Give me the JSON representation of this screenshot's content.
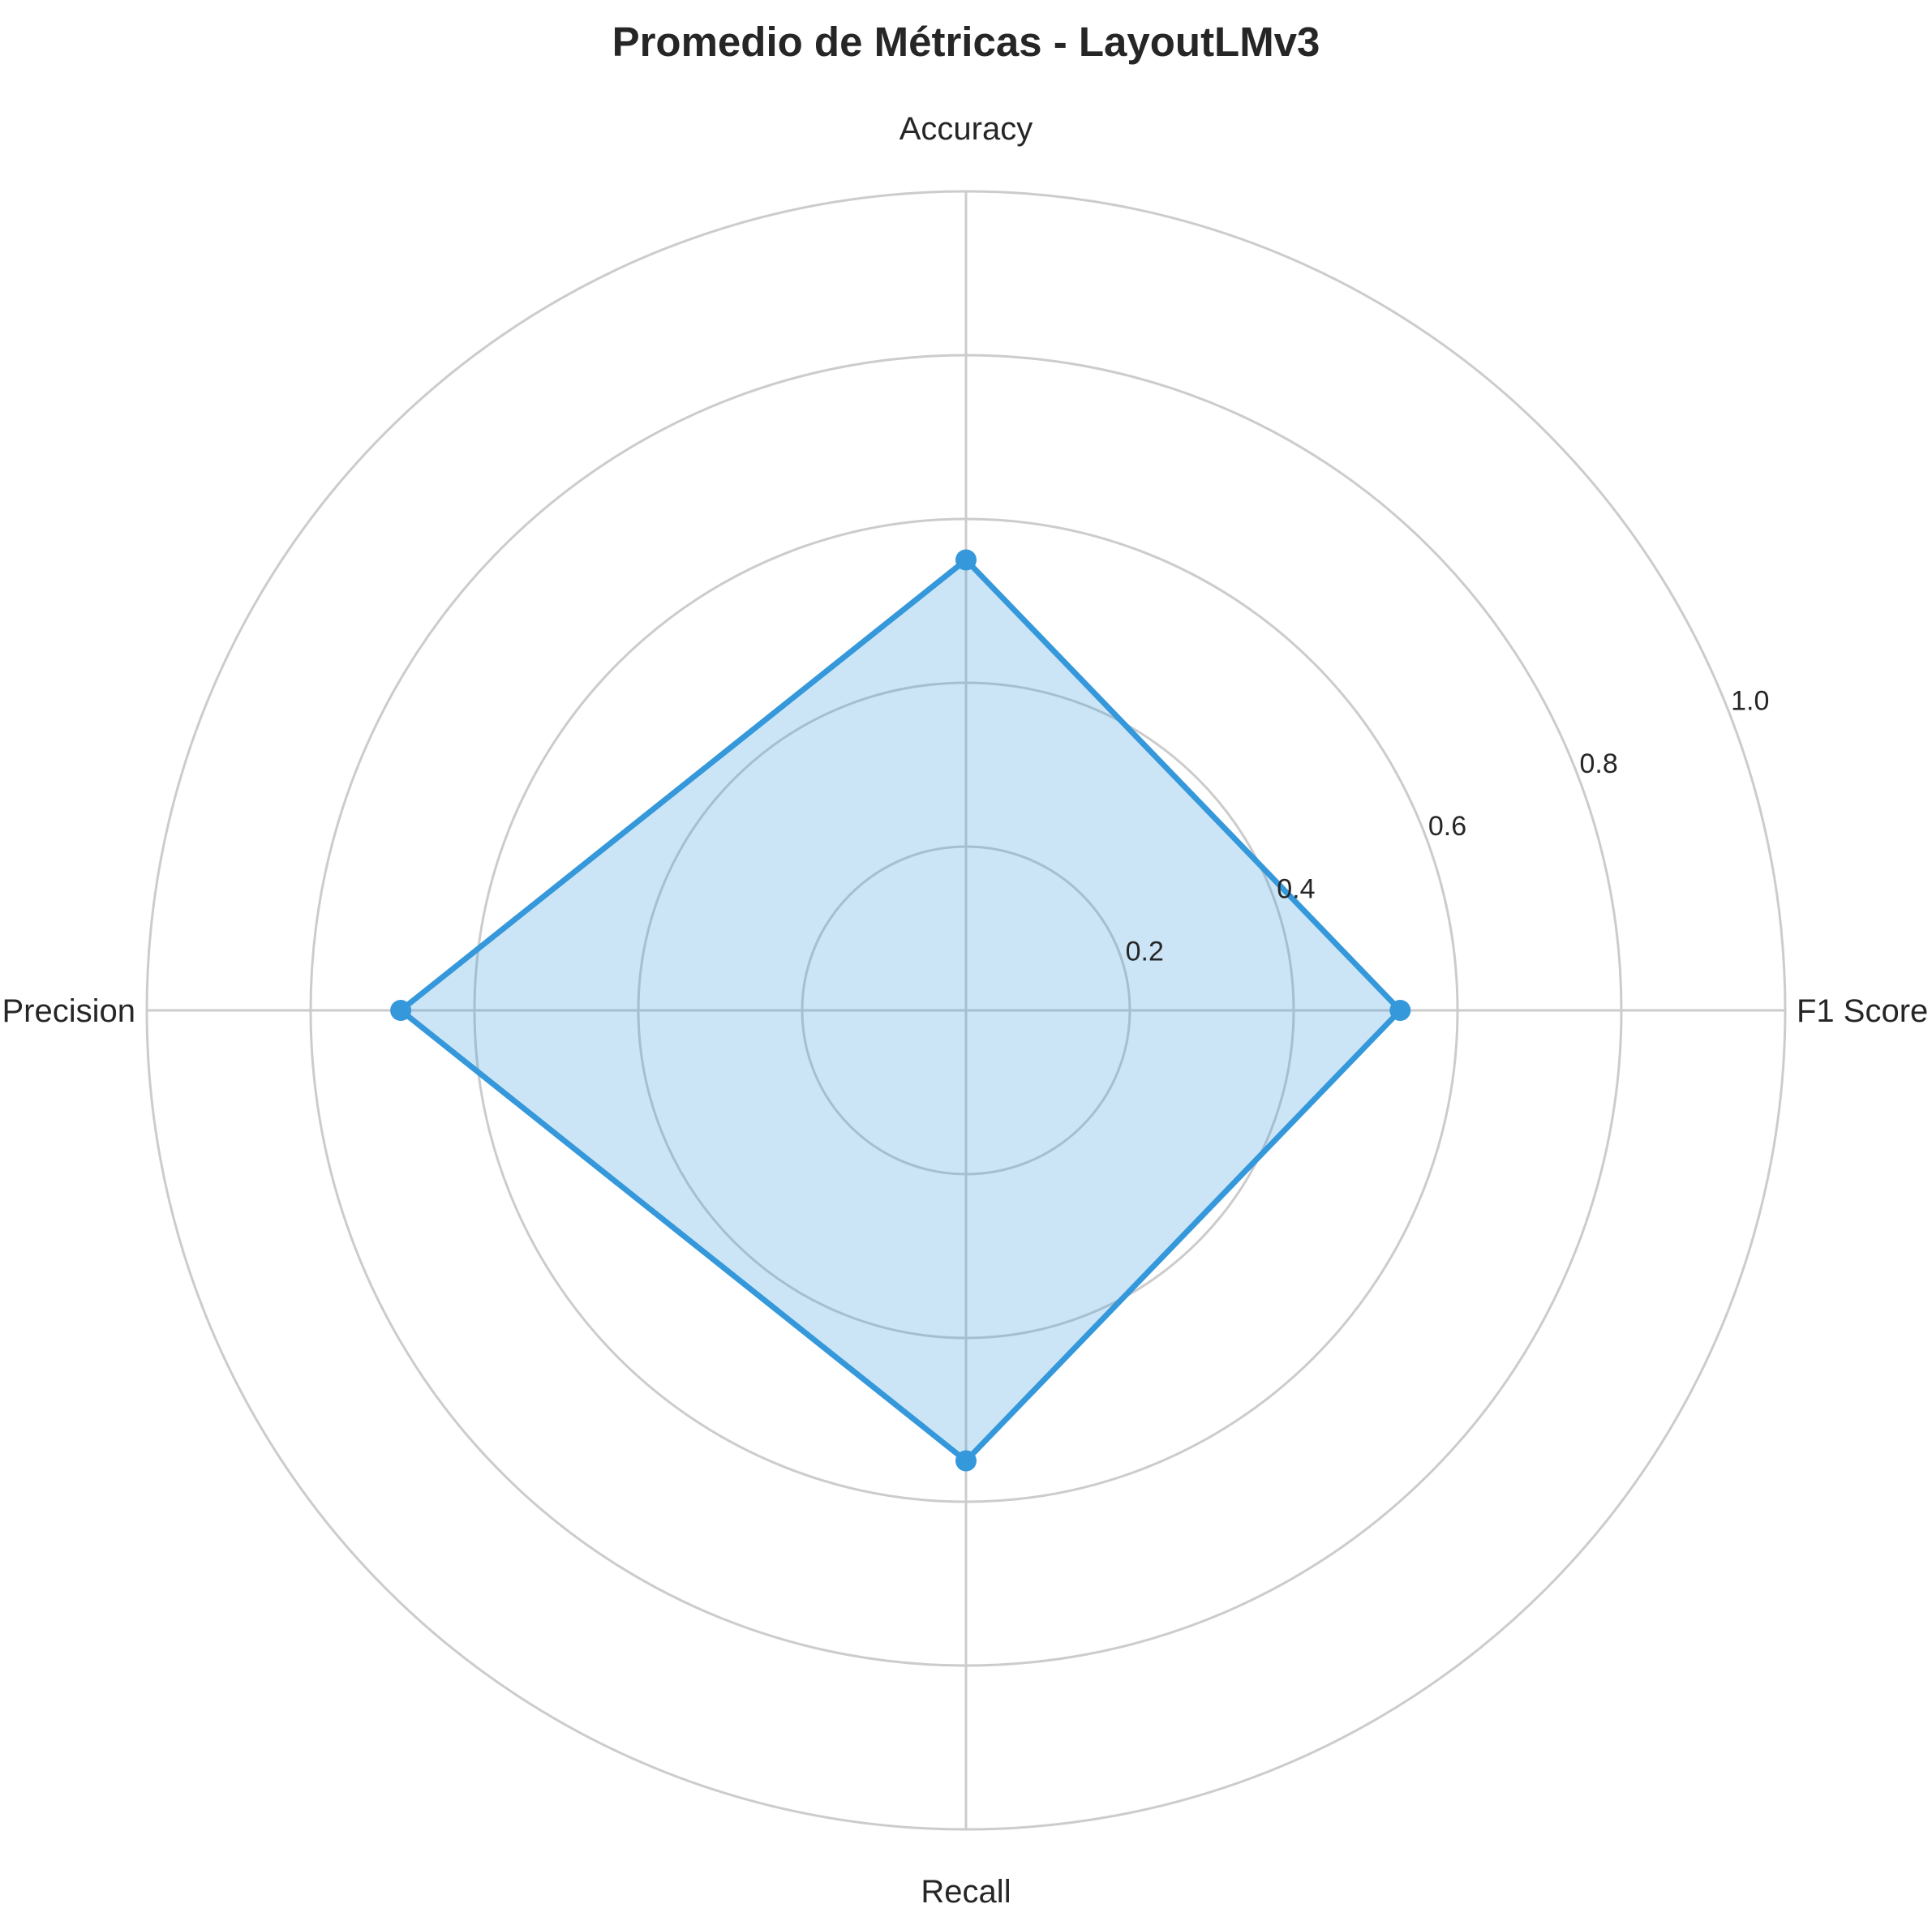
{
  "chart_data": {
    "type": "radar",
    "title": "Promedio de Métricas - LayoutLMv3",
    "axes": [
      "Accuracy",
      "F1 Score",
      "Recall",
      "Precision"
    ],
    "series": [
      {
        "values": [
          0.55,
          0.53,
          0.55,
          0.69
        ]
      }
    ],
    "rlim": [
      0,
      1.0
    ],
    "r_ticks": [
      "0.2",
      "0.4",
      "0.6",
      "0.8",
      "1.0"
    ],
    "grid": true,
    "line_color": "#3498db",
    "fill_color": "#3498db",
    "grid_color": "#cccccc",
    "text_color": "#262626"
  }
}
